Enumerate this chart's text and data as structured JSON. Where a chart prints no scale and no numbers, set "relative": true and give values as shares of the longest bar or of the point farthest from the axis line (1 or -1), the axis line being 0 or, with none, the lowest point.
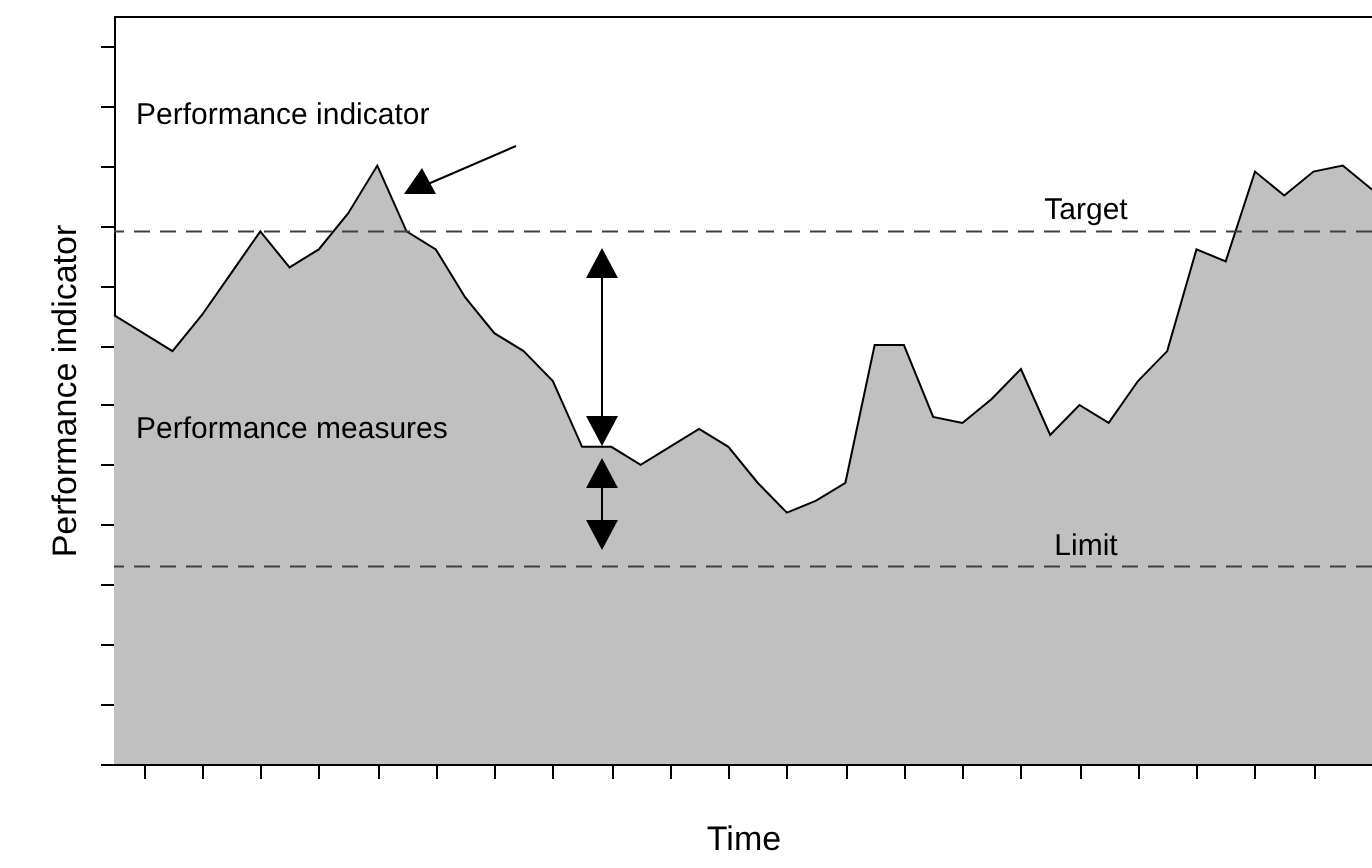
{
  "chart_data": {
    "type": "area",
    "relative": true,
    "xlabel": "Time",
    "ylabel": "Performance indicator",
    "categories": [
      null,
      null,
      null,
      null,
      null,
      null,
      null,
      null,
      null,
      null,
      null,
      null,
      null,
      null,
      null,
      null,
      null,
      null,
      null,
      null,
      null,
      null,
      null,
      null,
      null,
      null,
      null,
      null,
      null,
      null,
      null,
      null,
      null,
      null,
      null,
      null,
      null,
      null,
      null,
      null,
      null,
      null,
      null,
      null
    ],
    "series": [
      {
        "color": "#c0c0c0",
        "values": [
          0.75,
          0.72,
          0.69,
          0.75,
          0.82,
          0.89,
          0.83,
          0.86,
          0.92,
          1.0,
          0.89,
          0.86,
          0.78,
          0.72,
          0.69,
          0.64,
          0.53,
          0.53,
          0.5,
          0.53,
          0.56,
          0.53,
          0.47,
          0.42,
          0.44,
          0.47,
          0.7,
          0.7,
          0.58,
          0.57,
          0.61,
          0.66,
          0.55,
          0.6,
          0.57,
          0.64,
          0.69,
          0.86,
          0.84,
          0.99,
          0.95,
          0.99,
          1.0,
          0.96
        ]
      }
    ],
    "ref_lines": [
      {
        "axis": "y",
        "value": 0.89,
        "label": "Target",
        "color": "#404040",
        "line_style": "dashed"
      },
      {
        "axis": "y",
        "value": 0.33,
        "label": "Limit",
        "color": "#404040",
        "line_style": "dashed"
      }
    ],
    "annotations": [
      "Performance indicator",
      "Performance measures"
    ],
    "tick_labels": false,
    "grid": false
  }
}
